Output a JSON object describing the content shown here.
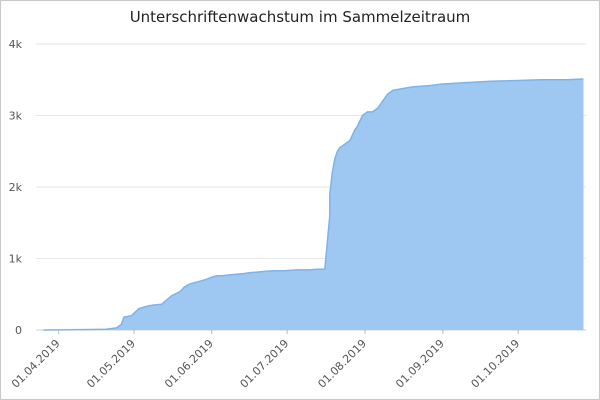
{
  "chart_data": {
    "type": "area",
    "title": "Unterschriftenwachstum im Sammelzeitraum",
    "xlabel": "",
    "ylabel": "",
    "ylim": [
      0,
      4000
    ],
    "y_ticks": [
      {
        "value": 0,
        "label": "0"
      },
      {
        "value": 1000,
        "label": "1k"
      },
      {
        "value": 2000,
        "label": "2k"
      },
      {
        "value": 3000,
        "label": "3k"
      },
      {
        "value": 4000,
        "label": "4k"
      }
    ],
    "x_ticks": [
      "01.04.2019",
      "01.05.2019",
      "01.06.2019",
      "01.07.2019",
      "01.08.2019",
      "01.09.2019",
      "01.10.2019"
    ],
    "grid": true,
    "legend": "none",
    "color": "#9ec8f2",
    "line_color": "#7eb3e6",
    "series": [
      {
        "x": [
          "2019-03-26",
          "2019-04-10",
          "2019-04-20",
          "2019-04-24",
          "2019-04-26",
          "2019-04-27",
          "2019-04-30",
          "2019-05-03",
          "2019-05-05",
          "2019-05-07",
          "2019-05-09",
          "2019-05-12",
          "2019-05-16",
          "2019-05-19",
          "2019-05-20",
          "2019-05-21",
          "2019-05-23",
          "2019-05-26",
          "2019-05-28",
          "2019-05-30",
          "2019-06-01",
          "2019-06-03",
          "2019-06-05",
          "2019-06-08",
          "2019-06-11",
          "2019-06-14",
          "2019-06-16",
          "2019-06-19",
          "2019-06-22",
          "2019-06-26",
          "2019-06-30",
          "2019-07-05",
          "2019-07-10",
          "2019-07-13",
          "2019-07-16",
          "2019-07-18",
          "2019-07-18",
          "2019-07-19",
          "2019-07-20",
          "2019-07-21",
          "2019-07-22",
          "2019-07-24",
          "2019-07-26",
          "2019-07-28",
          "2019-07-29",
          "2019-07-31",
          "2019-08-02",
          "2019-08-04",
          "2019-08-06",
          "2019-08-08",
          "2019-08-10",
          "2019-08-12",
          "2019-08-15",
          "2019-08-20",
          "2019-08-27",
          "2019-09-01",
          "2019-09-10",
          "2019-09-20",
          "2019-10-01",
          "2019-10-10",
          "2019-10-20",
          "2019-10-27"
        ],
        "values": [
          0,
          5,
          10,
          30,
          80,
          180,
          200,
          300,
          320,
          340,
          350,
          360,
          480,
          530,
          560,
          600,
          640,
          670,
          690,
          710,
          740,
          760,
          760,
          770,
          780,
          790,
          800,
          810,
          820,
          830,
          830,
          840,
          840,
          850,
          850,
          1600,
          1900,
          2200,
          2400,
          2500,
          2550,
          2600,
          2650,
          2800,
          2850,
          3000,
          3050,
          3050,
          3100,
          3200,
          3300,
          3350,
          3370,
          3400,
          3420,
          3440,
          3460,
          3480,
          3490,
          3500,
          3500,
          3510
        ]
      }
    ]
  }
}
